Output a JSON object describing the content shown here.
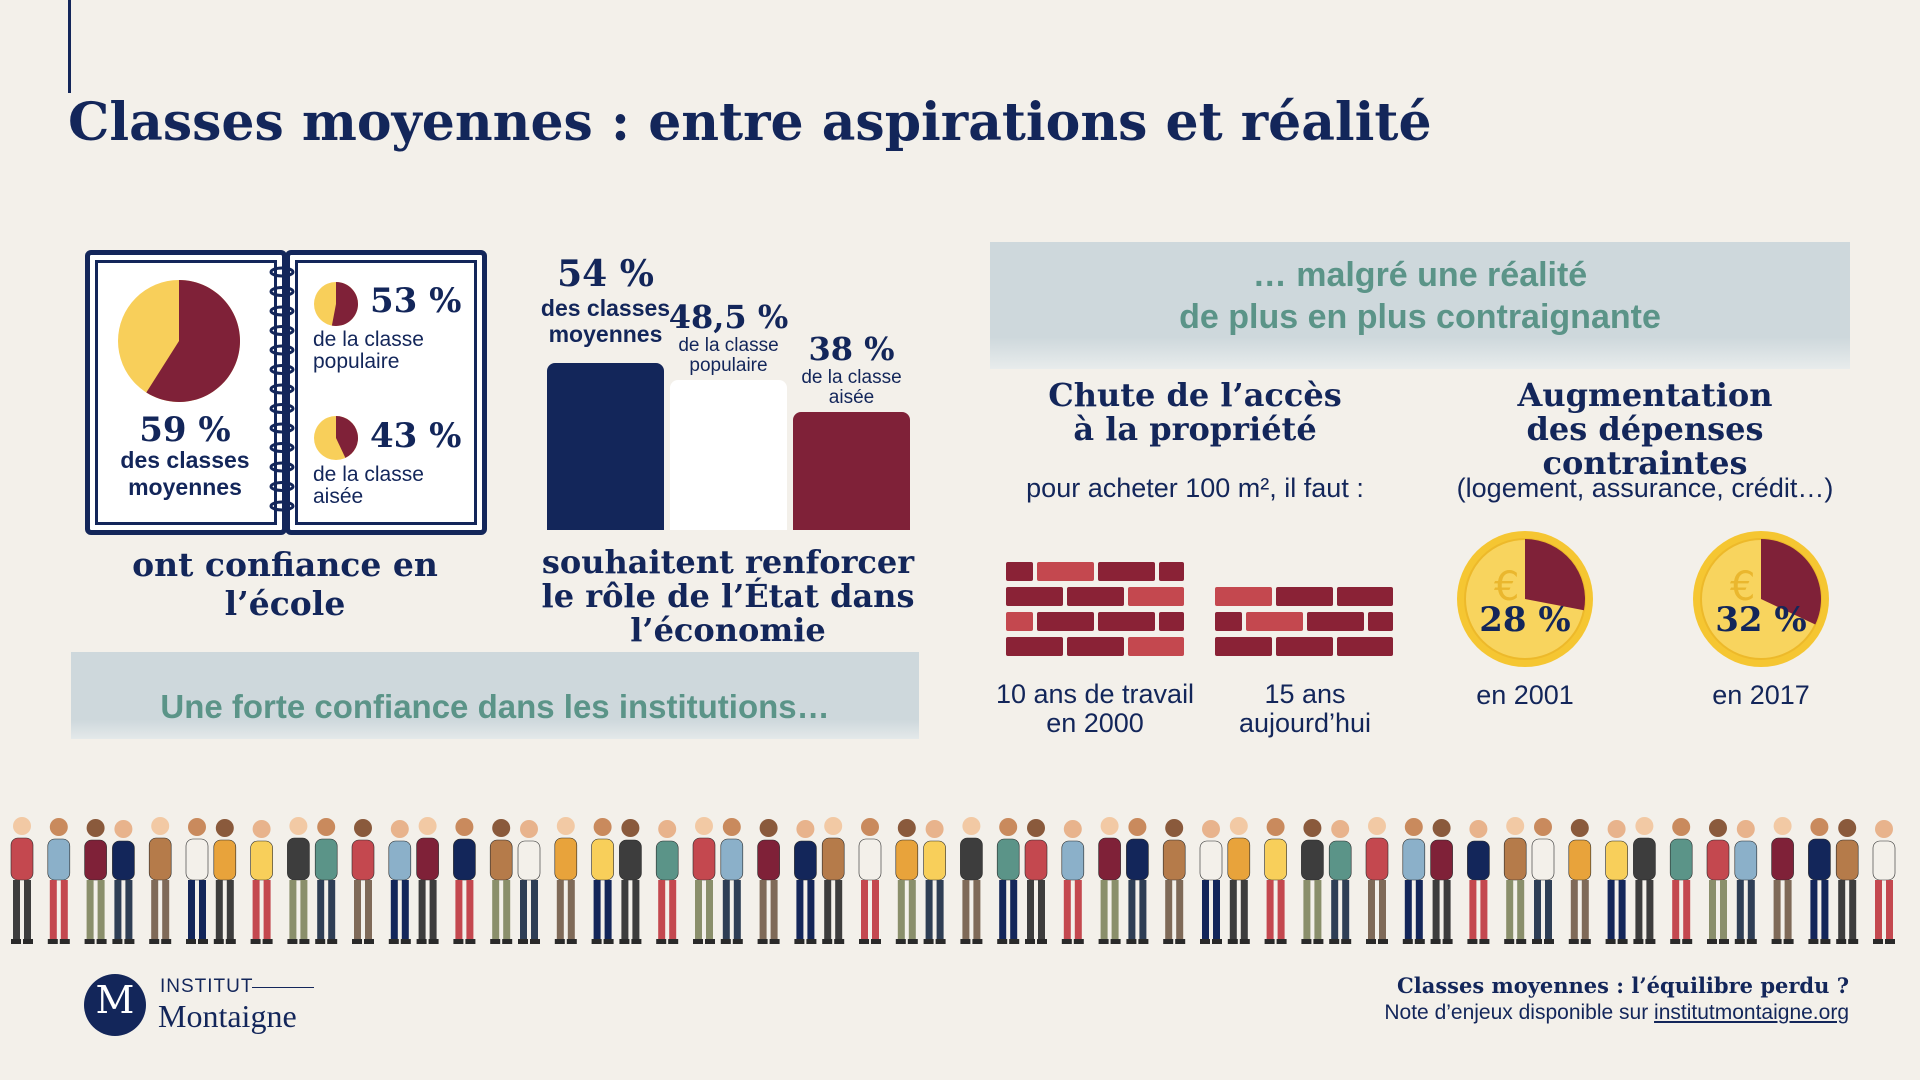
{
  "title": "Classes moyennes : entre aspirations et réalité",
  "institutions": {
    "banner": "Une forte confiance dans les institutions…",
    "school": {
      "main_pct": "59 %",
      "main_label": "des classes moyennes",
      "sub": [
        {
          "pct": "53 %",
          "label": "de la classe populaire"
        },
        {
          "pct": "43 %",
          "label": "de la classe aisée"
        }
      ],
      "caption": "ont confiance en l’école"
    },
    "state": {
      "caption": "souhaitent renforcer le rôle de l’État dans l’économie"
    }
  },
  "reality": {
    "banner_line1": "… malgré une réalité",
    "banner_line2": "de plus en plus contraignante",
    "property": {
      "title_line1": "Chute de l’accès",
      "title_line2": "à la propriété",
      "subtitle": "pour acheter 100 m², il faut :",
      "items": [
        {
          "line1": "10 ans de travail",
          "line2": "en 2000"
        },
        {
          "line1": "15 ans",
          "line2": "aujourd’hui"
        }
      ]
    },
    "expenses": {
      "title_line1": "Augmentation",
      "title_line2": "des dépenses contraintes",
      "subtitle": "(logement, assurance, crédit…)",
      "items": [
        {
          "pct": "28 %",
          "year": "en 2001"
        },
        {
          "pct": "32 %",
          "year": "en 2017"
        }
      ]
    }
  },
  "footer": {
    "logo_letter": "M",
    "logo_line1": "INSTITUT",
    "logo_line2": "Montaigne",
    "note_title": "Classes moyennes : l’équilibre perdu ?",
    "note_prefix": "Note d’enjeux disponible sur ",
    "note_link": "institutmontaigne.org"
  },
  "colors": {
    "navy": "#13265a",
    "bordeaux": "#7f2138",
    "yellow": "#f8cf5a",
    "teal": "#5b9488",
    "brick": "#8a2236",
    "brick_light": "#c4484f"
  },
  "chart_data": [
    {
      "type": "pie",
      "categories": [
        "des classes moyennes",
        "de la classe populaire",
        "de la classe aisée"
      ],
      "values": [
        59,
        53,
        43
      ],
      "labels": [
        "59 %",
        "53 %",
        "43 %"
      ]
    },
    {
      "type": "bar",
      "categories": [
        "des classes moyennes",
        "de la classe populaire",
        "de la classe aisée"
      ],
      "values": [
        54,
        48.5,
        38
      ],
      "labels": [
        "54 %",
        "48,5 %",
        "38 %"
      ]
    },
    {
      "type": "bar",
      "categories": [
        "en 2000",
        "aujourd’hui"
      ],
      "values": [
        10,
        15
      ]
    },
    {
      "type": "pie",
      "categories": [
        "en 2001",
        "en 2017"
      ],
      "values": [
        28,
        32
      ],
      "labels": [
        "28 %",
        "32 %"
      ]
    }
  ]
}
